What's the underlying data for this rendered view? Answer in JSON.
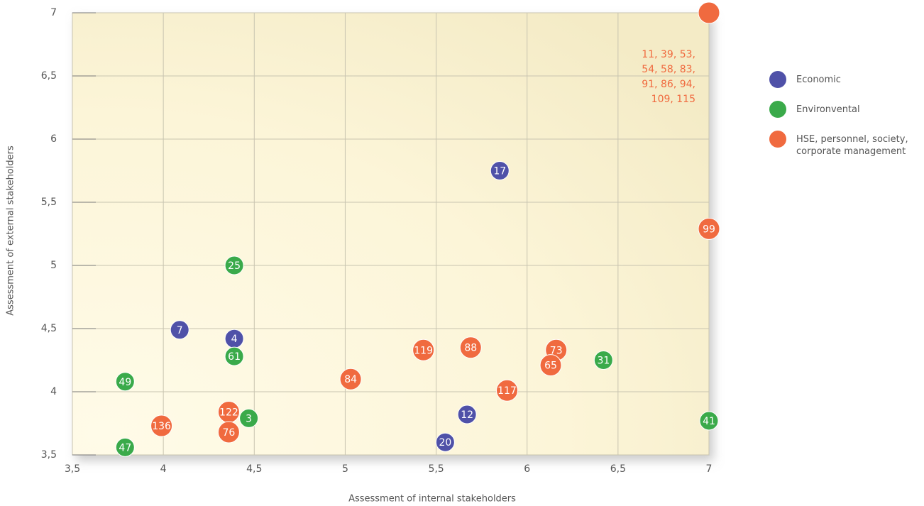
{
  "chart_data": {
    "type": "scatter",
    "xlabel": "Assessment of internal stakeholders",
    "ylabel": "Assessment of external stakeholders",
    "xlim": [
      3.5,
      7
    ],
    "ylim": [
      3.5,
      7
    ],
    "xticks": [
      {
        "value": 3.5,
        "label": "3,5"
      },
      4,
      {
        "value": 4.5,
        "label": "4,5"
      },
      5,
      {
        "value": 5.5,
        "label": "5,5"
      },
      6,
      {
        "value": 6.5,
        "label": "6,5"
      },
      7
    ],
    "yticks": [
      {
        "value": 3.5,
        "label": "3,5"
      },
      4,
      {
        "value": 4.5,
        "label": "4,5"
      },
      5,
      {
        "value": 5.5,
        "label": "5,5"
      },
      6,
      {
        "value": 6.5,
        "label": "6,5"
      },
      7
    ],
    "grid": true,
    "legend": "right",
    "series": [
      {
        "name": "Economic",
        "color": "#4f51a8",
        "x": [
          5.85,
          4.09,
          4.39,
          5.67,
          5.55
        ],
        "y": [
          5.75,
          4.49,
          4.42,
          3.82,
          3.6
        ],
        "labels": [
          "17",
          "7",
          "4",
          "12",
          "20"
        ]
      },
      {
        "name": "Environvental",
        "color": "#3aaa4a",
        "x": [
          4.39,
          4.39,
          3.79,
          4.47,
          3.79,
          6.42,
          7.0
        ],
        "y": [
          5.0,
          4.28,
          4.08,
          3.79,
          3.56,
          4.25,
          3.77
        ],
        "labels": [
          "25",
          "61",
          "49",
          "3",
          "47",
          "31",
          "41"
        ]
      },
      {
        "name": "HSE, personnel, society, corporate management",
        "color": "#f06a3f",
        "x": [
          7.0,
          7.0,
          5.43,
          5.69,
          6.16,
          6.13,
          5.03,
          5.89,
          4.36,
          4.36,
          3.99
        ],
        "y": [
          7.0,
          5.29,
          4.33,
          4.35,
          4.33,
          4.21,
          4.1,
          4.01,
          3.84,
          3.68,
          3.73
        ],
        "labels": [
          null,
          "99",
          "119",
          "88",
          "73",
          "65",
          "84",
          "117",
          "122",
          "76",
          "136"
        ]
      }
    ],
    "annotation": [
      "11, 39, 53,",
      "54, 58, 83,",
      "91, 86, 94,",
      "109, 115"
    ]
  }
}
